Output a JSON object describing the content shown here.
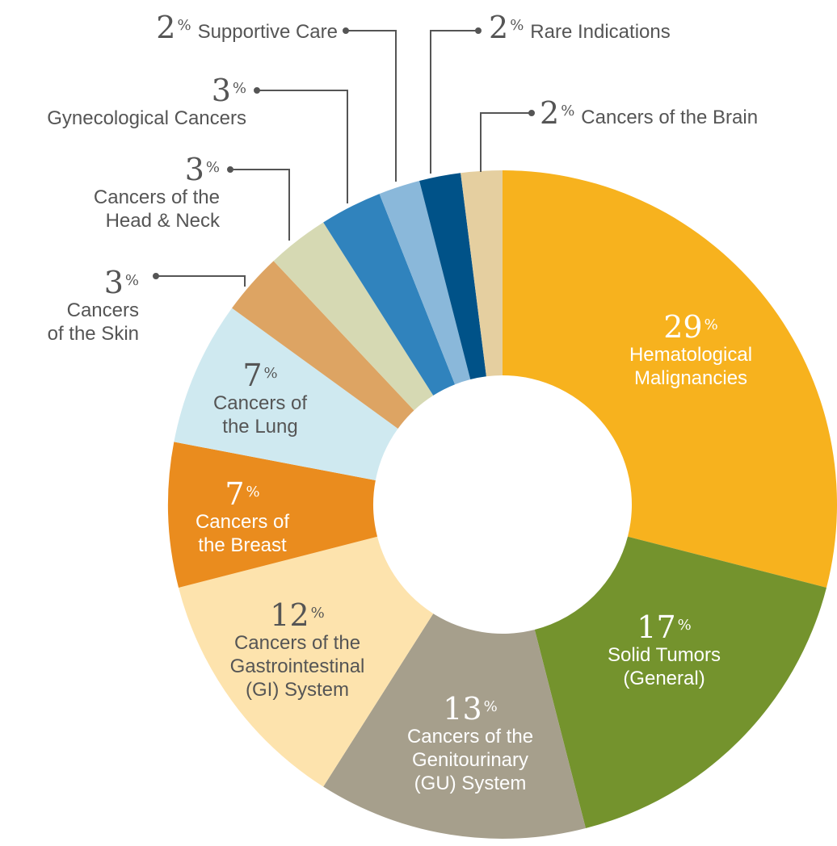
{
  "chart_data": {
    "type": "donut",
    "categories": [
      "Hematological\nMalignancies",
      "Solid Tumors\n(General)",
      "Cancers of the\nGenitourinary\n(GU) System",
      "Cancers of the\nGastrointestinal\n(GI) System",
      "Cancers of\nthe Breast",
      "Cancers of\nthe Lung",
      "Cancers\nof the Skin",
      "Cancers of the\nHead & Neck",
      "Gynecological Cancers",
      "Supportive Care",
      "Rare Indications",
      "Cancers of the Brain"
    ],
    "values": [
      29,
      17,
      13,
      12,
      7,
      7,
      3,
      3,
      3,
      2,
      2,
      2
    ],
    "value_labels": [
      "29%",
      "17%",
      "13%",
      "12%",
      "7%",
      "7%",
      "3%",
      "3%",
      "3%",
      "2%",
      "2%",
      "2%"
    ],
    "colors": [
      "#f7b21e",
      "#74932d",
      "#a69f8c",
      "#fde3ad",
      "#ea8c1e",
      "#cfe9f0",
      "#dda463",
      "#d6d9b3",
      "#3083bd",
      "#8ab8da",
      "#005288",
      "#e5cfa0"
    ]
  }
}
